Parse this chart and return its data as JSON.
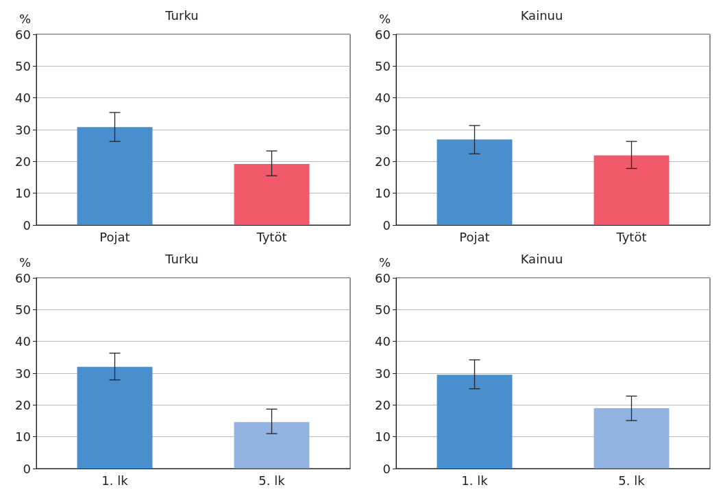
{
  "chart_data": [
    {
      "type": "bar",
      "title": "Turku",
      "ylabel": "%",
      "categories": [
        "Pojat",
        "Tytöt"
      ],
      "values": [
        30.8,
        19.2
      ],
      "colors": [
        "#4a8fcd",
        "#f05a6a"
      ],
      "errors": [
        [
          26.3,
          35.4
        ],
        [
          15.5,
          23.3
        ]
      ],
      "ylim": [
        0,
        60
      ],
      "yticks": [
        0,
        10,
        20,
        30,
        40,
        50,
        60
      ],
      "grid": "y"
    },
    {
      "type": "bar",
      "title": "Kainuu",
      "ylabel": "%",
      "categories": [
        "Pojat",
        "Tytöt"
      ],
      "values": [
        26.9,
        21.9
      ],
      "colors": [
        "#4a8fcd",
        "#f05a6a"
      ],
      "errors": [
        [
          22.4,
          31.3
        ],
        [
          17.8,
          26.3
        ]
      ],
      "ylim": [
        0,
        60
      ],
      "yticks": [
        0,
        10,
        20,
        30,
        40,
        50,
        60
      ],
      "grid": "y"
    },
    {
      "type": "bar",
      "title": "Turku",
      "ylabel": "%",
      "categories": [
        "1. lk",
        "5. lk"
      ],
      "values": [
        32.0,
        14.6
      ],
      "colors": [
        "#4a8fcd",
        "#92b3e0"
      ],
      "errors": [
        [
          27.9,
          36.3
        ],
        [
          11.0,
          18.7
        ]
      ],
      "ylim": [
        0,
        60
      ],
      "yticks": [
        0,
        10,
        20,
        30,
        40,
        50,
        60
      ],
      "grid": "y"
    },
    {
      "type": "bar",
      "title": "Kainuu",
      "ylabel": "%",
      "categories": [
        "1. lk",
        "5. lk"
      ],
      "values": [
        29.5,
        19.0
      ],
      "colors": [
        "#4a8fcd",
        "#92b3e0"
      ],
      "errors": [
        [
          25.1,
          34.2
        ],
        [
          15.1,
          22.8
        ]
      ],
      "ylim": [
        0,
        60
      ],
      "yticks": [
        0,
        10,
        20,
        30,
        40,
        50,
        60
      ],
      "grid": "y"
    }
  ]
}
